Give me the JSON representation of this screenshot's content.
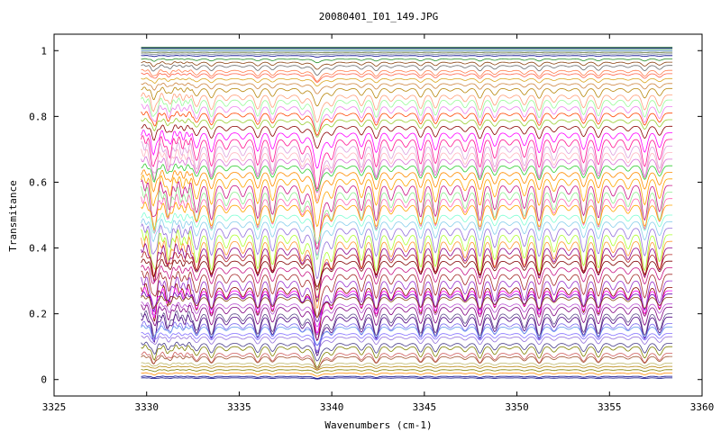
{
  "chart_data": {
    "type": "line",
    "title": "20080401_I01_149.JPG",
    "xlabel": "Wavenumbers (cm-1)",
    "ylabel": "Transmitance",
    "xlim": [
      3325,
      3360
    ],
    "ylim": [
      -0.05,
      1.05
    ],
    "x_ticks": [
      3325,
      3330,
      3335,
      3340,
      3345,
      3350,
      3355,
      3360
    ],
    "x_tick_labels": [
      "3325",
      "3330",
      "3335",
      "3340",
      "3345",
      "3350",
      "3355",
      "3360"
    ],
    "y_ticks": [
      0,
      0.2,
      0.4,
      0.6,
      0.8,
      1
    ],
    "y_tick_labels": [
      "0",
      "0.2",
      "0.4",
      "0.6",
      "0.8",
      "1"
    ],
    "grid": false,
    "legend": "none",
    "data_x_range": [
      3329.7,
      3358.4
    ],
    "absorption_line_centers": [
      3330.4,
      3331.2,
      3332.0,
      3332.7,
      3333.5,
      3334.3,
      3335.2,
      3336.0,
      3336.8,
      3337.6,
      3338.4,
      3339.2,
      3340.0,
      3340.8,
      3341.6,
      3342.4,
      3343.2,
      3344.0,
      3344.8,
      3345.6,
      3346.4,
      3347.2,
      3348.0,
      3348.8,
      3349.6,
      3350.4,
      3351.2,
      3352.0,
      3352.8,
      3353.6,
      3354.4,
      3355.2,
      3356.0,
      3356.9,
      3357.7
    ],
    "series_baselines": [
      1.01,
      1.008,
      1.005,
      1.0,
      0.995,
      0.99,
      0.985,
      0.975,
      0.965,
      0.955,
      0.94,
      0.93,
      0.915,
      0.9,
      0.885,
      0.865,
      0.85,
      0.83,
      0.81,
      0.79,
      0.77,
      0.75,
      0.73,
      0.71,
      0.69,
      0.67,
      0.65,
      0.63,
      0.61,
      0.59,
      0.57,
      0.55,
      0.53,
      0.5,
      0.48,
      0.46,
      0.44,
      0.42,
      0.4,
      0.38,
      0.36,
      0.34,
      0.32,
      0.3,
      0.28,
      0.27,
      0.26,
      0.25,
      0.23,
      0.22,
      0.2,
      0.19,
      0.17,
      0.16,
      0.14,
      0.13,
      0.11,
      0.1,
      0.08,
      0.07,
      0.05,
      0.04,
      0.03,
      0.02,
      0.01,
      0.005
    ],
    "series_colors": [
      "#006400",
      "#1a1a80",
      "#2e8b57",
      "#4682b4",
      "#556b2f",
      "#708090",
      "#00008b",
      "#228b22",
      "#8b4513",
      "#696969",
      "#ff7f50",
      "#ff6347",
      "#daa520",
      "#cd853f",
      "#b8860b",
      "#ffa07a",
      "#98fb98",
      "#ee82ee",
      "#ff4500",
      "#9acd32",
      "#8b0000",
      "#ff00ff",
      "#ff1493",
      "#dda0dd",
      "#ffb6c1",
      "#da70d6",
      "#32cd32",
      "#ff8c00",
      "#ffa500",
      "#c71585",
      "#90ee90",
      "#ff69b4",
      "#ffa500",
      "#7fffd4",
      "#87ceeb",
      "#9370db",
      "#adff2f",
      "#ff9933",
      "#8b008b",
      "#b22222",
      "#800000",
      "#c71585",
      "#a52a2a",
      "#9932cc",
      "#8b0000",
      "#ff00ff",
      "#6a0dad",
      "#8b4513",
      "#ba55d3",
      "#800080",
      "#5f4b8b",
      "#4b0082",
      "#7b68ee",
      "#6495ed",
      "#8470ff",
      "#9370db",
      "#483d8b",
      "#808000",
      "#cd5c5c",
      "#a0522d",
      "#bdb76b",
      "#b8860b",
      "#808000",
      "#ff8c00",
      "#00008b",
      "#000080"
    ]
  }
}
